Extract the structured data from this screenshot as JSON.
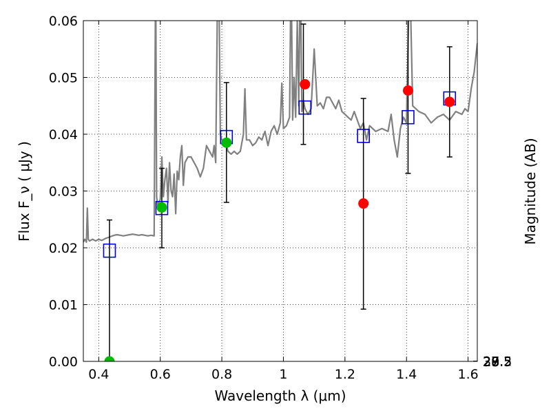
{
  "chart_data": {
    "type": "scatter",
    "title": "",
    "xlabel": "Wavelength  λ (μm)",
    "ylabel": "Flux  F_ν  ( μJy )",
    "ylabel_right": "Magnitude (AB)",
    "xlim": [
      0.35,
      1.63
    ],
    "ylim": [
      0.0,
      0.06
    ],
    "x_ticks": [
      0.4,
      0.6,
      0.8,
      1.0,
      1.2,
      1.4,
      1.6
    ],
    "x_tick_labels": [
      "0.4",
      "0.6",
      "0.8",
      "1",
      "1.2",
      "1.4",
      "1.6"
    ],
    "y_ticks": [
      0.0,
      0.01,
      0.02,
      0.03,
      0.04,
      0.05,
      0.06
    ],
    "y_tick_labels": [
      "0.00",
      "0.01",
      "0.02",
      "0.03",
      "0.04",
      "0.05",
      "0.06"
    ],
    "right_ticks": [
      {
        "mag": 27,
        "label": "27"
      },
      {
        "mag": 27.2,
        "label": "27.2"
      },
      {
        "mag": 27.5,
        "label": "27.5"
      },
      {
        "mag": 28,
        "label": "28"
      },
      {
        "mag": 28.5,
        "label": "28.5"
      },
      {
        "mag": 29,
        "label": "29"
      },
      {
        "mag": 30,
        "label": "30"
      }
    ],
    "grid": true,
    "colors": {
      "sed": "#808080",
      "model": "#0000cc",
      "detection": "#ff0000",
      "detection_green": "#00bb00",
      "errorbar": "#000000"
    },
    "series": [
      {
        "kind": "line",
        "color": "#808080",
        "x": [
          0.35,
          0.355,
          0.36,
          0.363,
          0.366,
          0.37,
          0.38,
          0.39,
          0.4,
          0.41,
          0.42,
          0.43,
          0.44,
          0.45,
          0.46,
          0.47,
          0.48,
          0.49,
          0.5,
          0.51,
          0.52,
          0.53,
          0.54,
          0.55,
          0.56,
          0.57,
          0.58,
          0.585,
          0.588,
          0.592,
          0.595,
          0.6,
          0.605,
          0.61,
          0.615,
          0.62,
          0.625,
          0.63,
          0.635,
          0.64,
          0.645,
          0.65,
          0.655,
          0.66,
          0.665,
          0.67,
          0.675,
          0.68,
          0.69,
          0.7,
          0.71,
          0.72,
          0.73,
          0.74,
          0.75,
          0.76,
          0.77,
          0.775,
          0.78,
          0.785,
          0.79,
          0.795,
          0.8,
          0.81,
          0.82,
          0.83,
          0.84,
          0.85,
          0.86,
          0.87,
          0.875,
          0.88,
          0.89,
          0.9,
          0.91,
          0.92,
          0.93,
          0.94,
          0.95,
          0.96,
          0.97,
          0.98,
          0.99,
          0.995,
          1.0,
          1.01,
          1.02,
          1.025,
          1.03,
          1.035,
          1.04,
          1.045,
          1.05,
          1.055,
          1.06,
          1.065,
          1.07,
          1.08,
          1.09,
          1.1,
          1.11,
          1.12,
          1.13,
          1.14,
          1.15,
          1.16,
          1.17,
          1.18,
          1.19,
          1.2,
          1.21,
          1.22,
          1.23,
          1.24,
          1.25,
          1.26,
          1.27,
          1.28,
          1.3,
          1.32,
          1.34,
          1.35,
          1.36,
          1.37,
          1.38,
          1.39,
          1.4,
          1.41,
          1.42,
          1.44,
          1.46,
          1.48,
          1.5,
          1.52,
          1.54,
          1.56,
          1.58,
          1.59,
          1.6,
          1.61,
          1.62,
          1.63
        ],
        "y": [
          0.021,
          0.0215,
          0.021,
          0.027,
          0.0215,
          0.0212,
          0.0215,
          0.0212,
          0.0215,
          0.0213,
          0.0216,
          0.0218,
          0.022,
          0.0222,
          0.0223,
          0.0222,
          0.0221,
          0.0222,
          0.0223,
          0.0224,
          0.0223,
          0.0222,
          0.0223,
          0.0222,
          0.0221,
          0.0222,
          0.0221,
          0.07,
          0.029,
          0.027,
          0.028,
          0.0285,
          0.036,
          0.029,
          0.032,
          0.034,
          0.028,
          0.035,
          0.03,
          0.029,
          0.033,
          0.026,
          0.0335,
          0.032,
          0.036,
          0.038,
          0.031,
          0.035,
          0.036,
          0.036,
          0.035,
          0.034,
          0.0325,
          0.034,
          0.038,
          0.037,
          0.036,
          0.038,
          0.035,
          0.06,
          0.07,
          0.04,
          0.039,
          0.039,
          0.037,
          0.0365,
          0.037,
          0.0365,
          0.037,
          0.04,
          0.048,
          0.039,
          0.039,
          0.038,
          0.0385,
          0.0395,
          0.039,
          0.0405,
          0.038,
          0.0405,
          0.0415,
          0.04,
          0.042,
          0.049,
          0.041,
          0.0415,
          0.043,
          0.07,
          0.0425,
          0.05,
          0.043,
          0.06,
          0.045,
          0.07,
          0.044,
          0.046,
          0.0445,
          0.0435,
          0.0445,
          0.055,
          0.045,
          0.0455,
          0.0445,
          0.0465,
          0.0465,
          0.0455,
          0.0445,
          0.046,
          0.044,
          0.0435,
          0.043,
          0.0425,
          0.044,
          0.0425,
          0.041,
          0.042,
          0.039,
          0.0415,
          0.0405,
          0.041,
          0.0405,
          0.0435,
          0.039,
          0.036,
          0.041,
          0.043,
          0.042,
          0.07,
          0.045,
          0.044,
          0.0435,
          0.042,
          0.043,
          0.0435,
          0.0425,
          0.044,
          0.0435,
          0.0445,
          0.044,
          0.048,
          0.051,
          0.056
        ]
      },
      {
        "kind": "open-square",
        "color": "#0000cc",
        "x": [
          0.435,
          0.605,
          0.815,
          1.07,
          1.26,
          1.405,
          1.54
        ],
        "y": [
          0.0195,
          0.027,
          0.0395,
          0.0447,
          0.0397,
          0.043,
          0.0463
        ]
      },
      {
        "kind": "filled-circle",
        "color": "#00bb00",
        "x": [
          0.435,
          0.605,
          0.815
        ],
        "y": [
          0.0,
          0.0271,
          0.0385
        ]
      },
      {
        "kind": "filled-circle",
        "color": "#ff0000",
        "x": [
          1.07,
          1.26,
          1.405,
          1.54
        ],
        "y": [
          0.0488,
          0.0278,
          0.0477,
          0.0457
        ]
      },
      {
        "kind": "errorbar",
        "color": "#000000",
        "x": [
          0.435,
          0.605,
          0.815,
          1.065,
          1.26,
          1.405,
          1.54
        ],
        "low": [
          0.0,
          0.02,
          0.028,
          0.0382,
          0.0092,
          0.0331,
          0.036
        ],
        "high": [
          0.0249,
          0.034,
          0.0491,
          0.0594,
          0.0463,
          0.0612,
          0.0554
        ]
      }
    ]
  }
}
